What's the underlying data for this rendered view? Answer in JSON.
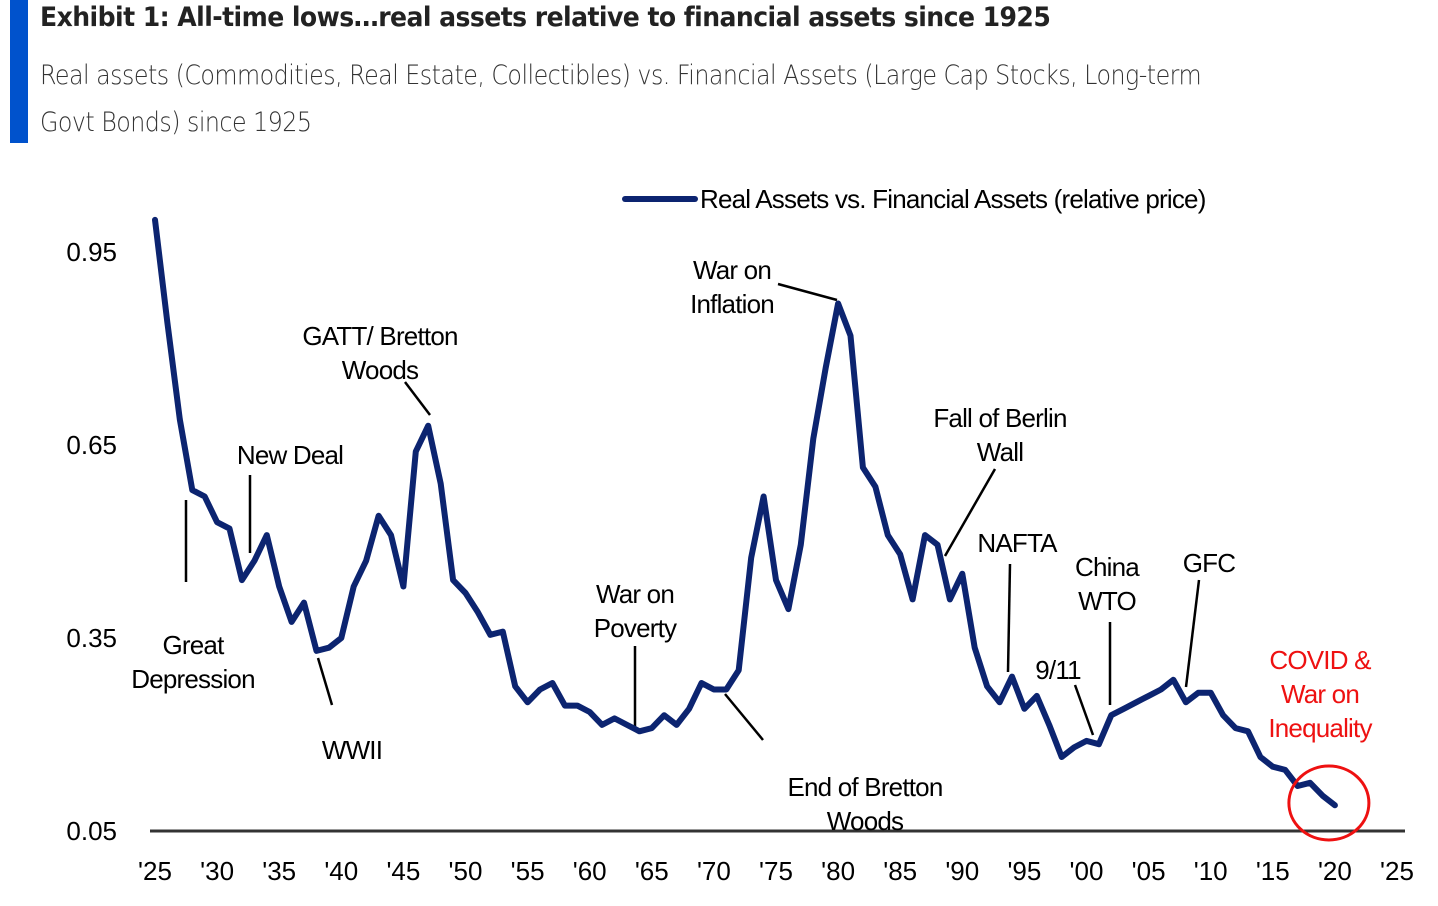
{
  "header": {
    "title": "Exhibit 1: All-time lows…real assets relative to financial assets since 1925",
    "subtitle_line1": "Real assets (Commodities, Real Estate, Collectibles) vs. Financial Assets (Large Cap Stocks, Long-term",
    "subtitle_line2": "Govt Bonds) since 1925"
  },
  "colors": {
    "accent": "#0052cc",
    "series": "#0c2470",
    "annotation_highlight": "#ee1111",
    "axis": "#333333"
  },
  "chart_data": {
    "type": "line",
    "title": "Exhibit 1: All-time lows…real assets relative to financial assets since 1925",
    "xlabel": "",
    "ylabel": "",
    "xlim": [
      1925,
      2025
    ],
    "ylim": [
      0.05,
      1.0
    ],
    "grid": false,
    "legend_position": "top-center",
    "x_ticks": [
      {
        "value": 1925,
        "label": "'25"
      },
      {
        "value": 1930,
        "label": "'30"
      },
      {
        "value": 1935,
        "label": "'35"
      },
      {
        "value": 1940,
        "label": "'40"
      },
      {
        "value": 1945,
        "label": "'45"
      },
      {
        "value": 1950,
        "label": "'50"
      },
      {
        "value": 1955,
        "label": "'55"
      },
      {
        "value": 1960,
        "label": "'60"
      },
      {
        "value": 1965,
        "label": "'65"
      },
      {
        "value": 1970,
        "label": "'70"
      },
      {
        "value": 1975,
        "label": "'75"
      },
      {
        "value": 1980,
        "label": "'80"
      },
      {
        "value": 1985,
        "label": "'85"
      },
      {
        "value": 1990,
        "label": "'90"
      },
      {
        "value": 1995,
        "label": "'95"
      },
      {
        "value": 2000,
        "label": "'00"
      },
      {
        "value": 2005,
        "label": "'05"
      },
      {
        "value": 2010,
        "label": "'10"
      },
      {
        "value": 2015,
        "label": "'15"
      },
      {
        "value": 2020,
        "label": "'20"
      },
      {
        "value": 2025,
        "label": "'25"
      }
    ],
    "y_ticks": [
      {
        "value": 0.05,
        "label": "0.05"
      },
      {
        "value": 0.35,
        "label": "0.35"
      },
      {
        "value": 0.65,
        "label": "0.65"
      },
      {
        "value": 0.95,
        "label": "0.95"
      }
    ],
    "series": [
      {
        "name": "Real Assets vs. Financial Assets (relative price)",
        "x": [
          1925,
          1926,
          1927,
          1928,
          1929,
          1930,
          1931,
          1932,
          1933,
          1934,
          1935,
          1936,
          1937,
          1938,
          1939,
          1940,
          1941,
          1942,
          1943,
          1944,
          1945,
          1946,
          1947,
          1948,
          1949,
          1950,
          1951,
          1952,
          1953,
          1954,
          1955,
          1956,
          1957,
          1958,
          1959,
          1960,
          1961,
          1962,
          1963,
          1964,
          1965,
          1966,
          1967,
          1968,
          1969,
          1970,
          1971,
          1972,
          1973,
          1974,
          1975,
          1976,
          1977,
          1978,
          1979,
          1980,
          1981,
          1982,
          1983,
          1984,
          1985,
          1986,
          1987,
          1988,
          1989,
          1990,
          1991,
          1992,
          1993,
          1994,
          1995,
          1996,
          1997,
          1998,
          1999,
          2000,
          2001,
          2002,
          2003,
          2004,
          2005,
          2006,
          2007,
          2008,
          2009,
          2010,
          2011,
          2012,
          2013,
          2014,
          2015,
          2016,
          2017,
          2018,
          2019,
          2020
        ],
        "y": [
          1.0,
          0.84,
          0.69,
          0.58,
          0.57,
          0.53,
          0.52,
          0.44,
          0.47,
          0.51,
          0.43,
          0.375,
          0.405,
          0.33,
          0.335,
          0.35,
          0.43,
          0.47,
          0.54,
          0.51,
          0.43,
          0.64,
          0.68,
          0.59,
          0.44,
          0.42,
          0.39,
          0.355,
          0.36,
          0.275,
          0.25,
          0.27,
          0.28,
          0.245,
          0.245,
          0.235,
          0.215,
          0.225,
          0.215,
          0.205,
          0.21,
          0.23,
          0.215,
          0.24,
          0.28,
          0.27,
          0.27,
          0.3,
          0.475,
          0.57,
          0.44,
          0.395,
          0.495,
          0.66,
          0.77,
          0.87,
          0.82,
          0.615,
          0.585,
          0.51,
          0.48,
          0.41,
          0.51,
          0.495,
          0.41,
          0.45,
          0.335,
          0.275,
          0.25,
          0.29,
          0.24,
          0.26,
          0.215,
          0.165,
          0.18,
          0.19,
          0.185,
          0.23,
          0.24,
          0.25,
          0.26,
          0.27,
          0.285,
          0.25,
          0.265,
          0.265,
          0.23,
          0.21,
          0.205,
          0.165,
          0.15,
          0.145,
          0.12,
          0.125,
          0.105,
          0.09
        ]
      }
    ],
    "annotations": [
      {
        "lines": [
          "Great",
          "Depression"
        ],
        "year": 1928,
        "color": "black"
      },
      {
        "lines": [
          "New Deal"
        ],
        "year": 1933,
        "color": "black"
      },
      {
        "lines": [
          "WWII"
        ],
        "year": 1938,
        "color": "black"
      },
      {
        "lines": [
          "GATT/ Bretton",
          "Woods"
        ],
        "year": 1947,
        "color": "black"
      },
      {
        "lines": [
          "War on",
          "Poverty"
        ],
        "year": 1964,
        "color": "black"
      },
      {
        "lines": [
          "End of Bretton",
          "Woods"
        ],
        "year": 1971,
        "color": "black"
      },
      {
        "lines": [
          "War on",
          "Inflation"
        ],
        "year": 1980,
        "color": "black"
      },
      {
        "lines": [
          "Fall of Berlin",
          "Wall"
        ],
        "year": 1989,
        "color": "black"
      },
      {
        "lines": [
          "NAFTA"
        ],
        "year": 1994,
        "color": "black"
      },
      {
        "lines": [
          "9/11"
        ],
        "year": 2001,
        "color": "black"
      },
      {
        "lines": [
          "China",
          "WTO"
        ],
        "year": 2002,
        "color": "black"
      },
      {
        "lines": [
          "GFC"
        ],
        "year": 2008,
        "color": "black"
      },
      {
        "lines": [
          "COVID &",
          "War on",
          "Inequality"
        ],
        "year": 2020,
        "color": "red"
      }
    ]
  }
}
